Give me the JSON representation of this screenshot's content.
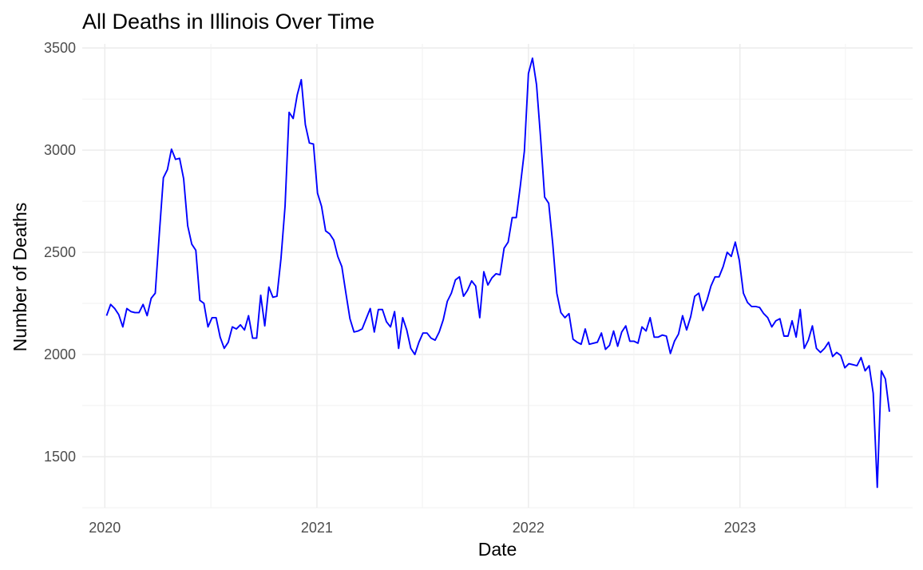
{
  "chart_data": {
    "type": "line",
    "title": "All Deaths in Illinois Over Time",
    "xlabel": "Date",
    "ylabel": "Number of Deaths",
    "x_ticks": [
      "2020",
      "2021",
      "2022",
      "2023"
    ],
    "y_ticks": [
      1500,
      2000,
      2500,
      3000,
      3500
    ],
    "xlim": [
      "2019-11-23",
      "2023-10-26"
    ],
    "ylim": [
      1250,
      3520
    ],
    "grid": true,
    "legend": "none",
    "colors": {
      "series": "#0000ff",
      "grid": "#ebebeb",
      "tick_text": "#4d4d4d"
    },
    "series": [
      {
        "x": [
          "2020-01-04",
          "2020-01-11",
          "2020-01-18",
          "2020-01-25",
          "2020-02-01",
          "2020-02-08",
          "2020-02-15",
          "2020-02-22",
          "2020-02-29",
          "2020-03-07",
          "2020-03-14",
          "2020-03-21",
          "2020-03-28",
          "2020-04-04",
          "2020-04-11",
          "2020-04-18",
          "2020-04-25",
          "2020-05-02",
          "2020-05-09",
          "2020-05-16",
          "2020-05-23",
          "2020-05-30",
          "2020-06-06",
          "2020-06-13",
          "2020-06-20",
          "2020-06-27",
          "2020-07-04",
          "2020-07-11",
          "2020-07-18",
          "2020-07-25",
          "2020-08-01",
          "2020-08-08",
          "2020-08-15",
          "2020-08-22",
          "2020-08-29",
          "2020-09-05",
          "2020-09-12",
          "2020-09-19",
          "2020-09-26",
          "2020-10-03",
          "2020-10-10",
          "2020-10-17",
          "2020-10-24",
          "2020-10-31",
          "2020-11-07",
          "2020-11-14",
          "2020-11-21",
          "2020-11-28",
          "2020-12-05",
          "2020-12-12",
          "2020-12-19",
          "2020-12-26",
          "2021-01-02",
          "2021-01-09",
          "2021-01-16",
          "2021-01-23",
          "2021-01-30",
          "2021-02-06",
          "2021-02-13",
          "2021-02-20",
          "2021-02-27",
          "2021-03-06",
          "2021-03-13",
          "2021-03-20",
          "2021-03-27",
          "2021-04-03",
          "2021-04-10",
          "2021-04-17",
          "2021-04-24",
          "2021-05-01",
          "2021-05-08",
          "2021-05-15",
          "2021-05-22",
          "2021-05-29",
          "2021-06-05",
          "2021-06-12",
          "2021-06-19",
          "2021-06-26",
          "2021-07-03",
          "2021-07-10",
          "2021-07-17",
          "2021-07-24",
          "2021-07-31",
          "2021-08-07",
          "2021-08-14",
          "2021-08-21",
          "2021-08-28",
          "2021-09-04",
          "2021-09-11",
          "2021-09-18",
          "2021-09-25",
          "2021-10-02",
          "2021-10-09",
          "2021-10-16",
          "2021-10-23",
          "2021-10-30",
          "2021-11-06",
          "2021-11-13",
          "2021-11-20",
          "2021-11-27",
          "2021-12-04",
          "2021-12-11",
          "2021-12-18",
          "2021-12-25",
          "2022-01-01",
          "2022-01-08",
          "2022-01-15",
          "2022-01-22",
          "2022-01-29",
          "2022-02-05",
          "2022-02-12",
          "2022-02-19",
          "2022-02-26",
          "2022-03-05",
          "2022-03-12",
          "2022-03-19",
          "2022-03-26",
          "2022-04-02",
          "2022-04-09",
          "2022-04-16",
          "2022-04-23",
          "2022-04-30",
          "2022-05-07",
          "2022-05-14",
          "2022-05-21",
          "2022-05-28",
          "2022-06-04",
          "2022-06-11",
          "2022-06-18",
          "2022-06-25",
          "2022-07-02",
          "2022-07-09",
          "2022-07-16",
          "2022-07-23",
          "2022-07-30",
          "2022-08-06",
          "2022-08-13",
          "2022-08-20",
          "2022-08-27",
          "2022-09-03",
          "2022-09-10",
          "2022-09-17",
          "2022-09-24",
          "2022-10-01",
          "2022-10-08",
          "2022-10-15",
          "2022-10-22",
          "2022-10-29",
          "2022-11-05",
          "2022-11-12",
          "2022-11-19",
          "2022-11-26",
          "2022-12-03",
          "2022-12-10",
          "2022-12-17",
          "2022-12-24",
          "2022-12-31",
          "2023-01-07",
          "2023-01-14",
          "2023-01-21",
          "2023-01-28",
          "2023-02-04",
          "2023-02-11",
          "2023-02-18",
          "2023-02-25",
          "2023-03-04",
          "2023-03-11",
          "2023-03-18",
          "2023-03-25",
          "2023-04-01",
          "2023-04-08",
          "2023-04-15",
          "2023-04-22",
          "2023-04-29",
          "2023-05-06",
          "2023-05-13",
          "2023-05-20",
          "2023-05-27",
          "2023-06-03",
          "2023-06-10",
          "2023-06-17",
          "2023-06-24",
          "2023-07-01",
          "2023-07-08",
          "2023-07-15",
          "2023-07-22",
          "2023-07-29",
          "2023-08-05",
          "2023-08-12",
          "2023-08-19",
          "2023-08-26",
          "2023-09-02",
          "2023-09-09",
          "2023-09-16"
        ],
        "y": [
          2190,
          2245,
          2225,
          2195,
          2135,
          2225,
          2210,
          2205,
          2205,
          2245,
          2190,
          2275,
          2300,
          2590,
          2865,
          2905,
          3005,
          2955,
          2960,
          2860,
          2630,
          2540,
          2510,
          2265,
          2250,
          2135,
          2180,
          2180,
          2085,
          2030,
          2060,
          2135,
          2125,
          2145,
          2120,
          2190,
          2080,
          2080,
          2290,
          2140,
          2330,
          2280,
          2285,
          2470,
          2725,
          3185,
          3155,
          3270,
          3345,
          3125,
          3035,
          3030,
          2790,
          2725,
          2605,
          2590,
          2560,
          2480,
          2430,
          2300,
          2175,
          2110,
          2115,
          2125,
          2175,
          2225,
          2110,
          2220,
          2220,
          2160,
          2135,
          2210,
          2030,
          2180,
          2120,
          2030,
          2000,
          2060,
          2105,
          2105,
          2080,
          2070,
          2110,
          2170,
          2260,
          2300,
          2365,
          2380,
          2285,
          2315,
          2360,
          2335,
          2180,
          2405,
          2340,
          2375,
          2395,
          2390,
          2520,
          2550,
          2670,
          2670,
          2825,
          2995,
          3375,
          3450,
          3320,
          3060,
          2770,
          2740,
          2540,
          2300,
          2205,
          2180,
          2200,
          2075,
          2060,
          2050,
          2125,
          2050,
          2055,
          2060,
          2105,
          2025,
          2045,
          2115,
          2040,
          2110,
          2140,
          2065,
          2065,
          2055,
          2135,
          2115,
          2180,
          2085,
          2085,
          2095,
          2090,
          2005,
          2065,
          2100,
          2190,
          2120,
          2185,
          2285,
          2300,
          2215,
          2265,
          2335,
          2380,
          2380,
          2430,
          2500,
          2480,
          2550,
          2460,
          2300,
          2255,
          2235,
          2235,
          2230,
          2200,
          2180,
          2135,
          2165,
          2175,
          2090,
          2090,
          2165,
          2085,
          2220,
          2030,
          2070,
          2140,
          2030,
          2010,
          2030,
          2060,
          1990,
          2010,
          1995,
          1935,
          1955,
          1950,
          1945,
          1985,
          1920,
          1945,
          1810,
          1350,
          1920,
          1880,
          1720
        ]
      }
    ]
  }
}
